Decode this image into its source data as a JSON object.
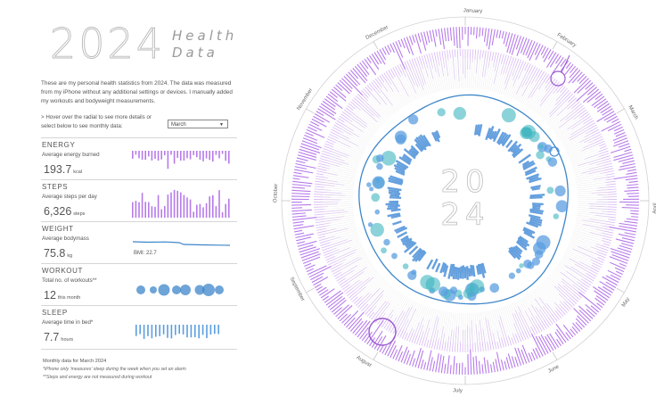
{
  "header": {
    "year": "2024",
    "line1": "Health",
    "line2": "Data"
  },
  "intro": "These are my personal health statistics from 2024. The data was measured from my iPhone without any additional settings or devices. I manually added my workouts and bodyweight measurements.",
  "controls": {
    "hover_note": "> Hover over the radial to see more details or select below to see monthly data:",
    "month_value": "March"
  },
  "metrics": {
    "energy": {
      "title": "ENERGY",
      "subtitle": "Average energy burned",
      "value": "193.7",
      "unit": "kcal"
    },
    "steps": {
      "title": "STEPS",
      "subtitle": "Average steps per day",
      "value": "6,326",
      "unit": "steps"
    },
    "weight": {
      "title": "WEIGHT",
      "subtitle": "Average bodymass",
      "value": "75.8",
      "unit": "kg",
      "extra": "BMI: 22.7"
    },
    "workout": {
      "title": "WORKOUT",
      "subtitle": "Total no. of workouts**",
      "value": "12",
      "unit": "this month"
    },
    "sleep": {
      "title": "SLEEP",
      "subtitle": "Average time in bed*",
      "value": "7.7",
      "unit": "hours"
    }
  },
  "footer": {
    "title": "Monthly data for March 2024",
    "note1": "*iPhone only 'measures' sleep during the week when you set an alarm",
    "note2": "**Steps and energy are not measured during workout"
  },
  "radial": {
    "center_top": "20",
    "center_bottom": "24",
    "months": [
      "January",
      "February",
      "March",
      "April",
      "May",
      "June",
      "July",
      "August",
      "September",
      "October",
      "November",
      "December"
    ],
    "colors": {
      "energy": "#b77bea",
      "steps": "#5b9ee0",
      "sleep": "#4a8fd8",
      "workout": "#3fb6c0",
      "weight": "#3d86c9",
      "highlight": "#9b59d0"
    }
  }
}
